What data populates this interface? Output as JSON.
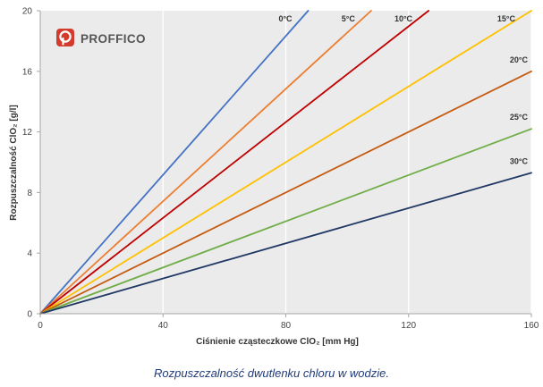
{
  "logo": {
    "text": "PROFFICO",
    "icon": "proffico-logo-icon",
    "icon_color": "#d33b2c"
  },
  "caption": "Rozpuszczalność dwutlenku chloru w wodzie.",
  "chart_data": {
    "type": "line",
    "title": "",
    "xlabel": "Ciśnienie cząsteczkowe ClO₂ [mm Hg]",
    "ylabel": "Rozpuszczalność ClO₂ [g/l]",
    "xlim": [
      0,
      160
    ],
    "ylim": [
      0,
      20
    ],
    "xticks": [
      0,
      40,
      80,
      120,
      160
    ],
    "yticks": [
      0,
      4,
      8,
      12,
      16,
      20
    ],
    "grid": "vertical",
    "background": "#ebebeb",
    "series": [
      {
        "name": "0°C",
        "color": "#4472c4",
        "x": [
          0,
          87.3
        ],
        "y": [
          0,
          20
        ]
      },
      {
        "name": "5°C",
        "color": "#ed7d31",
        "x": [
          0,
          107.8
        ],
        "y": [
          0,
          20
        ]
      },
      {
        "name": "10°C",
        "color": "#c00000",
        "x": [
          0,
          126.5
        ],
        "y": [
          0,
          20
        ]
      },
      {
        "name": "15°C",
        "color": "#ffc000",
        "x": [
          0,
          160
        ],
        "y": [
          0,
          20
        ]
      },
      {
        "name": "20°C",
        "color": "#c55a11",
        "x": [
          0,
          160
        ],
        "y": [
          0,
          16
        ]
      },
      {
        "name": "25°C",
        "color": "#70ad47",
        "x": [
          0,
          160
        ],
        "y": [
          0,
          12.2
        ]
      },
      {
        "name": "30°C",
        "color": "#203864",
        "x": [
          0,
          160
        ],
        "y": [
          0,
          9.3
        ]
      }
    ]
  }
}
